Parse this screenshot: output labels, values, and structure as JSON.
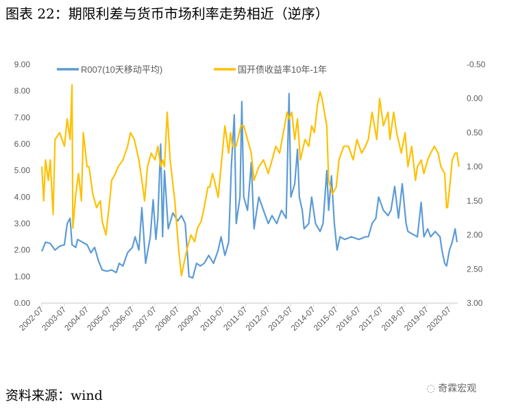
{
  "title": "图表 22：期限利差与货币市场利率走势相近（逆序）",
  "source": "资料来源：wind",
  "watermark": "奇霖宏观",
  "chart_data": {
    "type": "line",
    "title": "",
    "legend_position": "top",
    "grid": false,
    "x_tick_labels": [
      "2002-07",
      "2003-07",
      "2004-07",
      "2005-07",
      "2006-07",
      "2007-07",
      "2008-07",
      "2009-07",
      "2010-07",
      "2011-07",
      "2012-07",
      "2013-07",
      "2014-07",
      "2015-07",
      "2016-07",
      "2017-07",
      "2018-07",
      "2019-07",
      "2020-07"
    ],
    "y_left": {
      "range": [
        0,
        9
      ],
      "ticks": [
        "0.00",
        "1.00",
        "2.00",
        "3.00",
        "4.00",
        "5.00",
        "6.00",
        "7.00",
        "8.00",
        "9.00"
      ]
    },
    "y_right": {
      "range": [
        3,
        -0.5
      ],
      "inverted": true,
      "ticks": [
        "3.00",
        "2.50",
        "2.00",
        "1.50",
        "1.00",
        "0.50",
        "0.00",
        "-0.50"
      ]
    },
    "series": [
      {
        "name": "R007(10天移动平均)",
        "axis": "left",
        "color": "#5B9BD5",
        "points": [
          [
            "2002-07-01",
            1.95
          ],
          [
            "2002-09-01",
            2.3
          ],
          [
            "2002-11-15",
            2.25
          ],
          [
            "2003-02-01",
            2.0
          ],
          [
            "2003-04-15",
            2.15
          ],
          [
            "2003-07-01",
            2.2
          ],
          [
            "2003-08-15",
            3.0
          ],
          [
            "2003-10-01",
            3.2
          ],
          [
            "2003-11-01",
            2.2
          ],
          [
            "2004-01-01",
            2.1
          ],
          [
            "2004-02-01",
            2.4
          ],
          [
            "2004-04-15",
            2.3
          ],
          [
            "2004-07-01",
            2.2
          ],
          [
            "2004-09-01",
            1.9
          ],
          [
            "2004-11-01",
            2.1
          ],
          [
            "2005-01-01",
            1.6
          ],
          [
            "2005-03-01",
            1.25
          ],
          [
            "2005-05-15",
            1.2
          ],
          [
            "2005-08-01",
            1.25
          ],
          [
            "2005-10-15",
            1.15
          ],
          [
            "2005-12-01",
            1.5
          ],
          [
            "2006-02-01",
            1.4
          ],
          [
            "2006-04-15",
            1.9
          ],
          [
            "2006-07-01",
            2.1
          ],
          [
            "2006-08-15",
            2.5
          ],
          [
            "2006-10-15",
            2.0
          ],
          [
            "2006-12-01",
            3.6
          ],
          [
            "2007-02-01",
            1.5
          ],
          [
            "2007-04-15",
            2.5
          ],
          [
            "2007-06-01",
            3.9
          ],
          [
            "2007-07-15",
            2.4
          ],
          [
            "2007-08-15",
            3.2
          ],
          [
            "2007-10-01",
            6.0
          ],
          [
            "2007-11-01",
            2.5
          ],
          [
            "2007-12-01",
            5.0
          ],
          [
            "2008-02-01",
            2.8
          ],
          [
            "2008-04-15",
            3.4
          ],
          [
            "2008-07-01",
            3.1
          ],
          [
            "2008-09-01",
            3.3
          ],
          [
            "2008-11-01",
            3.0
          ],
          [
            "2008-12-01",
            2.0
          ],
          [
            "2009-01-01",
            1.0
          ],
          [
            "2009-03-01",
            0.95
          ],
          [
            "2009-05-01",
            1.5
          ],
          [
            "2009-07-01",
            1.4
          ],
          [
            "2009-09-01",
            1.5
          ],
          [
            "2009-11-15",
            1.8
          ],
          [
            "2010-02-01",
            1.5
          ],
          [
            "2010-04-15",
            2.0
          ],
          [
            "2010-06-01",
            2.5
          ],
          [
            "2010-08-01",
            1.8
          ],
          [
            "2010-10-01",
            2.3
          ],
          [
            "2010-11-15",
            5.2
          ],
          [
            "2011-01-01",
            7.1
          ],
          [
            "2011-02-01",
            3.0
          ],
          [
            "2011-04-01",
            4.0
          ],
          [
            "2011-05-01",
            7.6
          ],
          [
            "2011-06-01",
            4.0
          ],
          [
            "2011-08-01",
            3.5
          ],
          [
            "2011-10-01",
            5.3
          ],
          [
            "2011-11-15",
            2.8
          ],
          [
            "2012-02-01",
            4.0
          ],
          [
            "2012-04-15",
            3.5
          ],
          [
            "2012-07-01",
            3.0
          ],
          [
            "2012-09-01",
            3.3
          ],
          [
            "2012-11-15",
            3.0
          ],
          [
            "2013-02-01",
            3.5
          ],
          [
            "2013-04-15",
            3.2
          ],
          [
            "2013-06-01",
            7.9
          ],
          [
            "2013-07-01",
            4.0
          ],
          [
            "2013-09-01",
            4.5
          ],
          [
            "2013-10-15",
            5.8
          ],
          [
            "2013-11-15",
            4.0
          ],
          [
            "2014-01-01",
            3.5
          ],
          [
            "2014-02-01",
            2.8
          ],
          [
            "2014-04-15",
            3.0
          ],
          [
            "2014-06-01",
            4.0
          ],
          [
            "2014-08-01",
            3.0
          ],
          [
            "2014-10-15",
            2.7
          ],
          [
            "2014-12-01",
            3.0
          ],
          [
            "2015-02-01",
            5.0
          ],
          [
            "2015-03-01",
            3.5
          ],
          [
            "2015-04-15",
            4.8
          ],
          [
            "2015-06-01",
            3.0
          ],
          [
            "2015-07-15",
            2.0
          ],
          [
            "2015-09-01",
            2.5
          ],
          [
            "2015-11-15",
            2.4
          ],
          [
            "2016-03-01",
            2.5
          ],
          [
            "2016-07-01",
            2.4
          ],
          [
            "2016-10-15",
            2.5
          ],
          [
            "2016-12-01",
            2.5
          ],
          [
            "2017-02-01",
            3.0
          ],
          [
            "2017-04-01",
            3.2
          ],
          [
            "2017-05-15",
            4.0
          ],
          [
            "2017-08-01",
            3.5
          ],
          [
            "2017-10-15",
            3.3
          ],
          [
            "2017-12-01",
            3.5
          ],
          [
            "2018-02-01",
            4.4
          ],
          [
            "2018-04-01",
            3.2
          ],
          [
            "2018-06-01",
            4.5
          ],
          [
            "2018-08-01",
            3.0
          ],
          [
            "2018-09-01",
            2.7
          ],
          [
            "2018-11-15",
            2.6
          ],
          [
            "2019-02-01",
            2.5
          ],
          [
            "2019-04-01",
            3.8
          ],
          [
            "2019-05-15",
            2.5
          ],
          [
            "2019-07-15",
            2.8
          ],
          [
            "2019-09-01",
            2.5
          ],
          [
            "2019-11-15",
            2.7
          ],
          [
            "2020-02-01",
            2.5
          ],
          [
            "2020-03-01",
            2.0
          ],
          [
            "2020-04-15",
            1.5
          ],
          [
            "2020-05-15",
            1.4
          ],
          [
            "2020-07-01",
            2.0
          ],
          [
            "2020-08-15",
            2.3
          ],
          [
            "2020-10-01",
            2.8
          ],
          [
            "2020-11-01",
            2.3
          ]
        ]
      },
      {
        "name": "国开债收益率10年-1年",
        "axis": "right",
        "color": "#FFC000",
        "points": [
          [
            "2002-07-01",
            1.0
          ],
          [
            "2002-08-01",
            1.5
          ],
          [
            "2002-09-01",
            0.9
          ],
          [
            "2002-10-15",
            1.2
          ],
          [
            "2002-11-15",
            0.9
          ],
          [
            "2003-01-01",
            1.7
          ],
          [
            "2003-02-01",
            0.6
          ],
          [
            "2003-04-15",
            0.5
          ],
          [
            "2003-07-01",
            0.7
          ],
          [
            "2003-08-15",
            0.3
          ],
          [
            "2003-10-01",
            0.6
          ],
          [
            "2003-11-01",
            -0.2
          ],
          [
            "2003-11-15",
            1.9
          ],
          [
            "2004-01-01",
            1.4
          ],
          [
            "2004-02-15",
            1.1
          ],
          [
            "2004-04-01",
            1.5
          ],
          [
            "2004-05-01",
            0.5
          ],
          [
            "2004-07-01",
            1.0
          ],
          [
            "2004-08-01",
            1.0
          ],
          [
            "2004-10-01",
            1.4
          ],
          [
            "2004-12-01",
            1.6
          ],
          [
            "2005-02-01",
            1.5
          ],
          [
            "2005-03-01",
            1.8
          ],
          [
            "2005-05-01",
            2.0
          ],
          [
            "2005-07-01",
            1.5
          ],
          [
            "2005-08-01",
            1.2
          ],
          [
            "2005-10-01",
            1.1
          ],
          [
            "2005-11-15",
            1.0
          ],
          [
            "2006-02-01",
            0.9
          ],
          [
            "2006-04-15",
            0.7
          ],
          [
            "2006-06-01",
            0.5
          ],
          [
            "2006-08-01",
            0.6
          ],
          [
            "2006-10-15",
            0.9
          ],
          [
            "2006-12-01",
            1.2
          ],
          [
            "2007-01-15",
            1.5
          ],
          [
            "2007-03-01",
            1.0
          ],
          [
            "2007-05-01",
            0.8
          ],
          [
            "2007-07-01",
            0.9
          ],
          [
            "2007-08-15",
            0.7
          ],
          [
            "2007-10-01",
            1.0
          ],
          [
            "2007-11-01",
            0.9
          ],
          [
            "2007-12-01",
            1.0
          ],
          [
            "2008-01-15",
            0.2
          ],
          [
            "2008-03-01",
            0.9
          ],
          [
            "2008-05-15",
            1.5
          ],
          [
            "2008-07-15",
            2.2
          ],
          [
            "2008-09-01",
            2.6
          ],
          [
            "2008-10-15",
            2.4
          ],
          [
            "2008-12-01",
            2.2
          ],
          [
            "2009-02-01",
            2.0
          ],
          [
            "2009-04-01",
            2.1
          ],
          [
            "2009-05-15",
            1.9
          ],
          [
            "2009-07-15",
            1.8
          ],
          [
            "2009-09-01",
            1.6
          ],
          [
            "2009-11-01",
            1.3
          ],
          [
            "2009-12-01",
            1.3
          ],
          [
            "2010-01-15",
            1.1
          ],
          [
            "2010-02-15",
            1.2
          ],
          [
            "2010-04-15",
            1.45
          ],
          [
            "2010-06-01",
            1.0
          ],
          [
            "2010-08-01",
            0.4
          ],
          [
            "2010-10-01",
            0.8
          ],
          [
            "2010-11-01",
            0.5
          ],
          [
            "2010-12-01",
            0.7
          ],
          [
            "2011-02-01",
            0.7
          ],
          [
            "2011-04-15",
            0.4
          ],
          [
            "2011-06-01",
            0.4
          ],
          [
            "2011-08-01",
            0.6
          ],
          [
            "2011-10-01",
            0.8
          ],
          [
            "2011-11-15",
            1.2
          ],
          [
            "2012-02-01",
            1.0
          ],
          [
            "2012-04-15",
            0.9
          ],
          [
            "2012-07-01",
            1.1
          ],
          [
            "2012-09-01",
            0.9
          ],
          [
            "2012-11-01",
            0.7
          ],
          [
            "2013-01-01",
            0.8
          ],
          [
            "2013-03-01",
            0.5
          ],
          [
            "2013-05-01",
            0.2
          ],
          [
            "2013-06-01",
            0.3
          ],
          [
            "2013-07-15",
            0.2
          ],
          [
            "2013-09-01",
            0.6
          ],
          [
            "2013-10-15",
            0.3
          ],
          [
            "2013-12-01",
            0.9
          ],
          [
            "2014-02-15",
            0.6
          ],
          [
            "2014-04-15",
            0.7
          ],
          [
            "2014-06-01",
            0.4
          ],
          [
            "2014-07-15",
            0.5
          ],
          [
            "2014-09-01",
            0.1
          ],
          [
            "2014-10-15",
            -0.1
          ],
          [
            "2014-11-15",
            0.0
          ],
          [
            "2015-02-01",
            0.4
          ],
          [
            "2015-03-01",
            1.2
          ],
          [
            "2015-05-01",
            1.4
          ],
          [
            "2015-07-01",
            1.3
          ],
          [
            "2015-08-15",
            0.9
          ],
          [
            "2015-11-01",
            0.7
          ],
          [
            "2016-01-15",
            0.7
          ],
          [
            "2016-04-01",
            0.9
          ],
          [
            "2016-06-01",
            0.6
          ],
          [
            "2016-08-15",
            0.8
          ],
          [
            "2016-10-15",
            0.7
          ],
          [
            "2016-12-01",
            0.6
          ],
          [
            "2017-02-01",
            0.2
          ],
          [
            "2017-04-15",
            0.6
          ],
          [
            "2017-06-01",
            0.0
          ],
          [
            "2017-08-01",
            0.4
          ],
          [
            "2017-10-15",
            0.2
          ],
          [
            "2017-11-15",
            0.6
          ],
          [
            "2018-01-15",
            0.2
          ],
          [
            "2018-03-01",
            0.5
          ],
          [
            "2018-05-15",
            0.8
          ],
          [
            "2018-07-15",
            0.5
          ],
          [
            "2018-09-01",
            1.0
          ],
          [
            "2018-11-01",
            0.7
          ],
          [
            "2019-01-01",
            1.2
          ],
          [
            "2019-02-01",
            1.0
          ],
          [
            "2019-04-01",
            0.9
          ],
          [
            "2019-05-15",
            1.1
          ],
          [
            "2019-07-15",
            0.9
          ],
          [
            "2019-09-01",
            0.8
          ],
          [
            "2019-11-01",
            0.7
          ],
          [
            "2020-01-01",
            0.8
          ],
          [
            "2020-02-15",
            1.0
          ],
          [
            "2020-04-15",
            1.1
          ],
          [
            "2020-05-15",
            1.6
          ],
          [
            "2020-06-01",
            1.6
          ],
          [
            "2020-07-15",
            1.2
          ],
          [
            "2020-08-15",
            0.9
          ],
          [
            "2020-10-01",
            0.8
          ],
          [
            "2020-11-01",
            0.8
          ],
          [
            "2020-12-01",
            1.0
          ]
        ]
      }
    ]
  }
}
